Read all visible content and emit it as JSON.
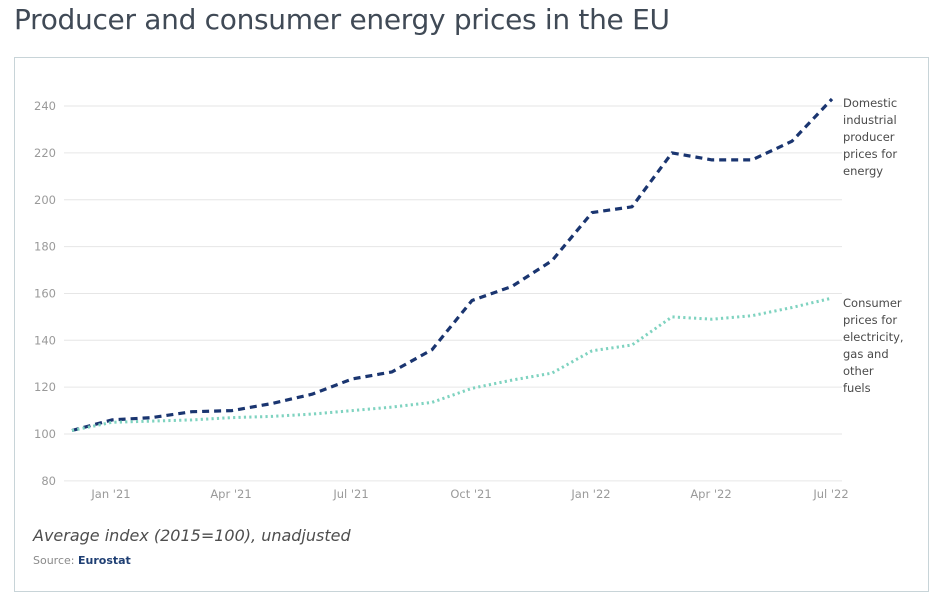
{
  "page": {
    "title": "Producer and consumer energy prices in the EU",
    "caption": "Average index (2015=100), unadjusted",
    "source_label": "Source:",
    "source_name": "Eurostat"
  },
  "colors": {
    "producer": "#1a3570",
    "consumer": "#7fd3c0",
    "grid": "#e6e6e6",
    "axis_text": "#9a9a9a",
    "title": "#404a56",
    "frame_border": "#c8d4d8",
    "source_link": "#1f3f73"
  },
  "chart_data": {
    "type": "line",
    "title": "Producer and consumer energy prices in the EU",
    "xlabel": "",
    "ylabel": "Average index (2015=100), unadjusted",
    "ylim": [
      80,
      250
    ],
    "yticks": [
      80,
      100,
      120,
      140,
      160,
      180,
      200,
      220,
      240
    ],
    "grid": true,
    "legend": "inline-right",
    "x": [
      "Dec '20",
      "Jan '21",
      "Feb '21",
      "Mar '21",
      "Apr '21",
      "May '21",
      "Jun '21",
      "Jul '21",
      "Aug '21",
      "Sep '21",
      "Oct '21",
      "Nov '21",
      "Dec '21",
      "Jan '22",
      "Feb '22",
      "Mar '22",
      "Apr '22",
      "May '22",
      "Jun '22",
      "Jul '22"
    ],
    "xtick_labels": [
      {
        "index": 1,
        "label": "Jan '21"
      },
      {
        "index": 4,
        "label": "Apr '21"
      },
      {
        "index": 7,
        "label": "Jul '21"
      },
      {
        "index": 10,
        "label": "Oct '21"
      },
      {
        "index": 13,
        "label": "Jan '22"
      },
      {
        "index": 16,
        "label": "Apr '22"
      },
      {
        "index": 19,
        "label": "Jul '22"
      }
    ],
    "series": [
      {
        "name": "Domestic industrial producer prices for energy",
        "label_lines": [
          "Domestic",
          "industrial",
          "producer",
          "prices for",
          "energy"
        ],
        "style": "dashed",
        "values": [
          101.5,
          106,
          107,
          109.5,
          110,
          113,
          117,
          123.5,
          126.5,
          136,
          157,
          163,
          174,
          194.5,
          197,
          220,
          217,
          217,
          225,
          243
        ]
      },
      {
        "name": "Consumer prices for electricity, gas and other fuels",
        "label_lines": [
          "Consumer",
          "prices for",
          "electricity,",
          "gas and",
          "other",
          "fuels"
        ],
        "style": "dotted",
        "values": [
          101.5,
          105,
          105.5,
          106,
          107,
          107.5,
          108.5,
          110,
          111.5,
          113.5,
          119.5,
          123,
          126,
          135.5,
          138,
          150,
          149,
          150.5,
          154,
          158
        ]
      }
    ]
  }
}
